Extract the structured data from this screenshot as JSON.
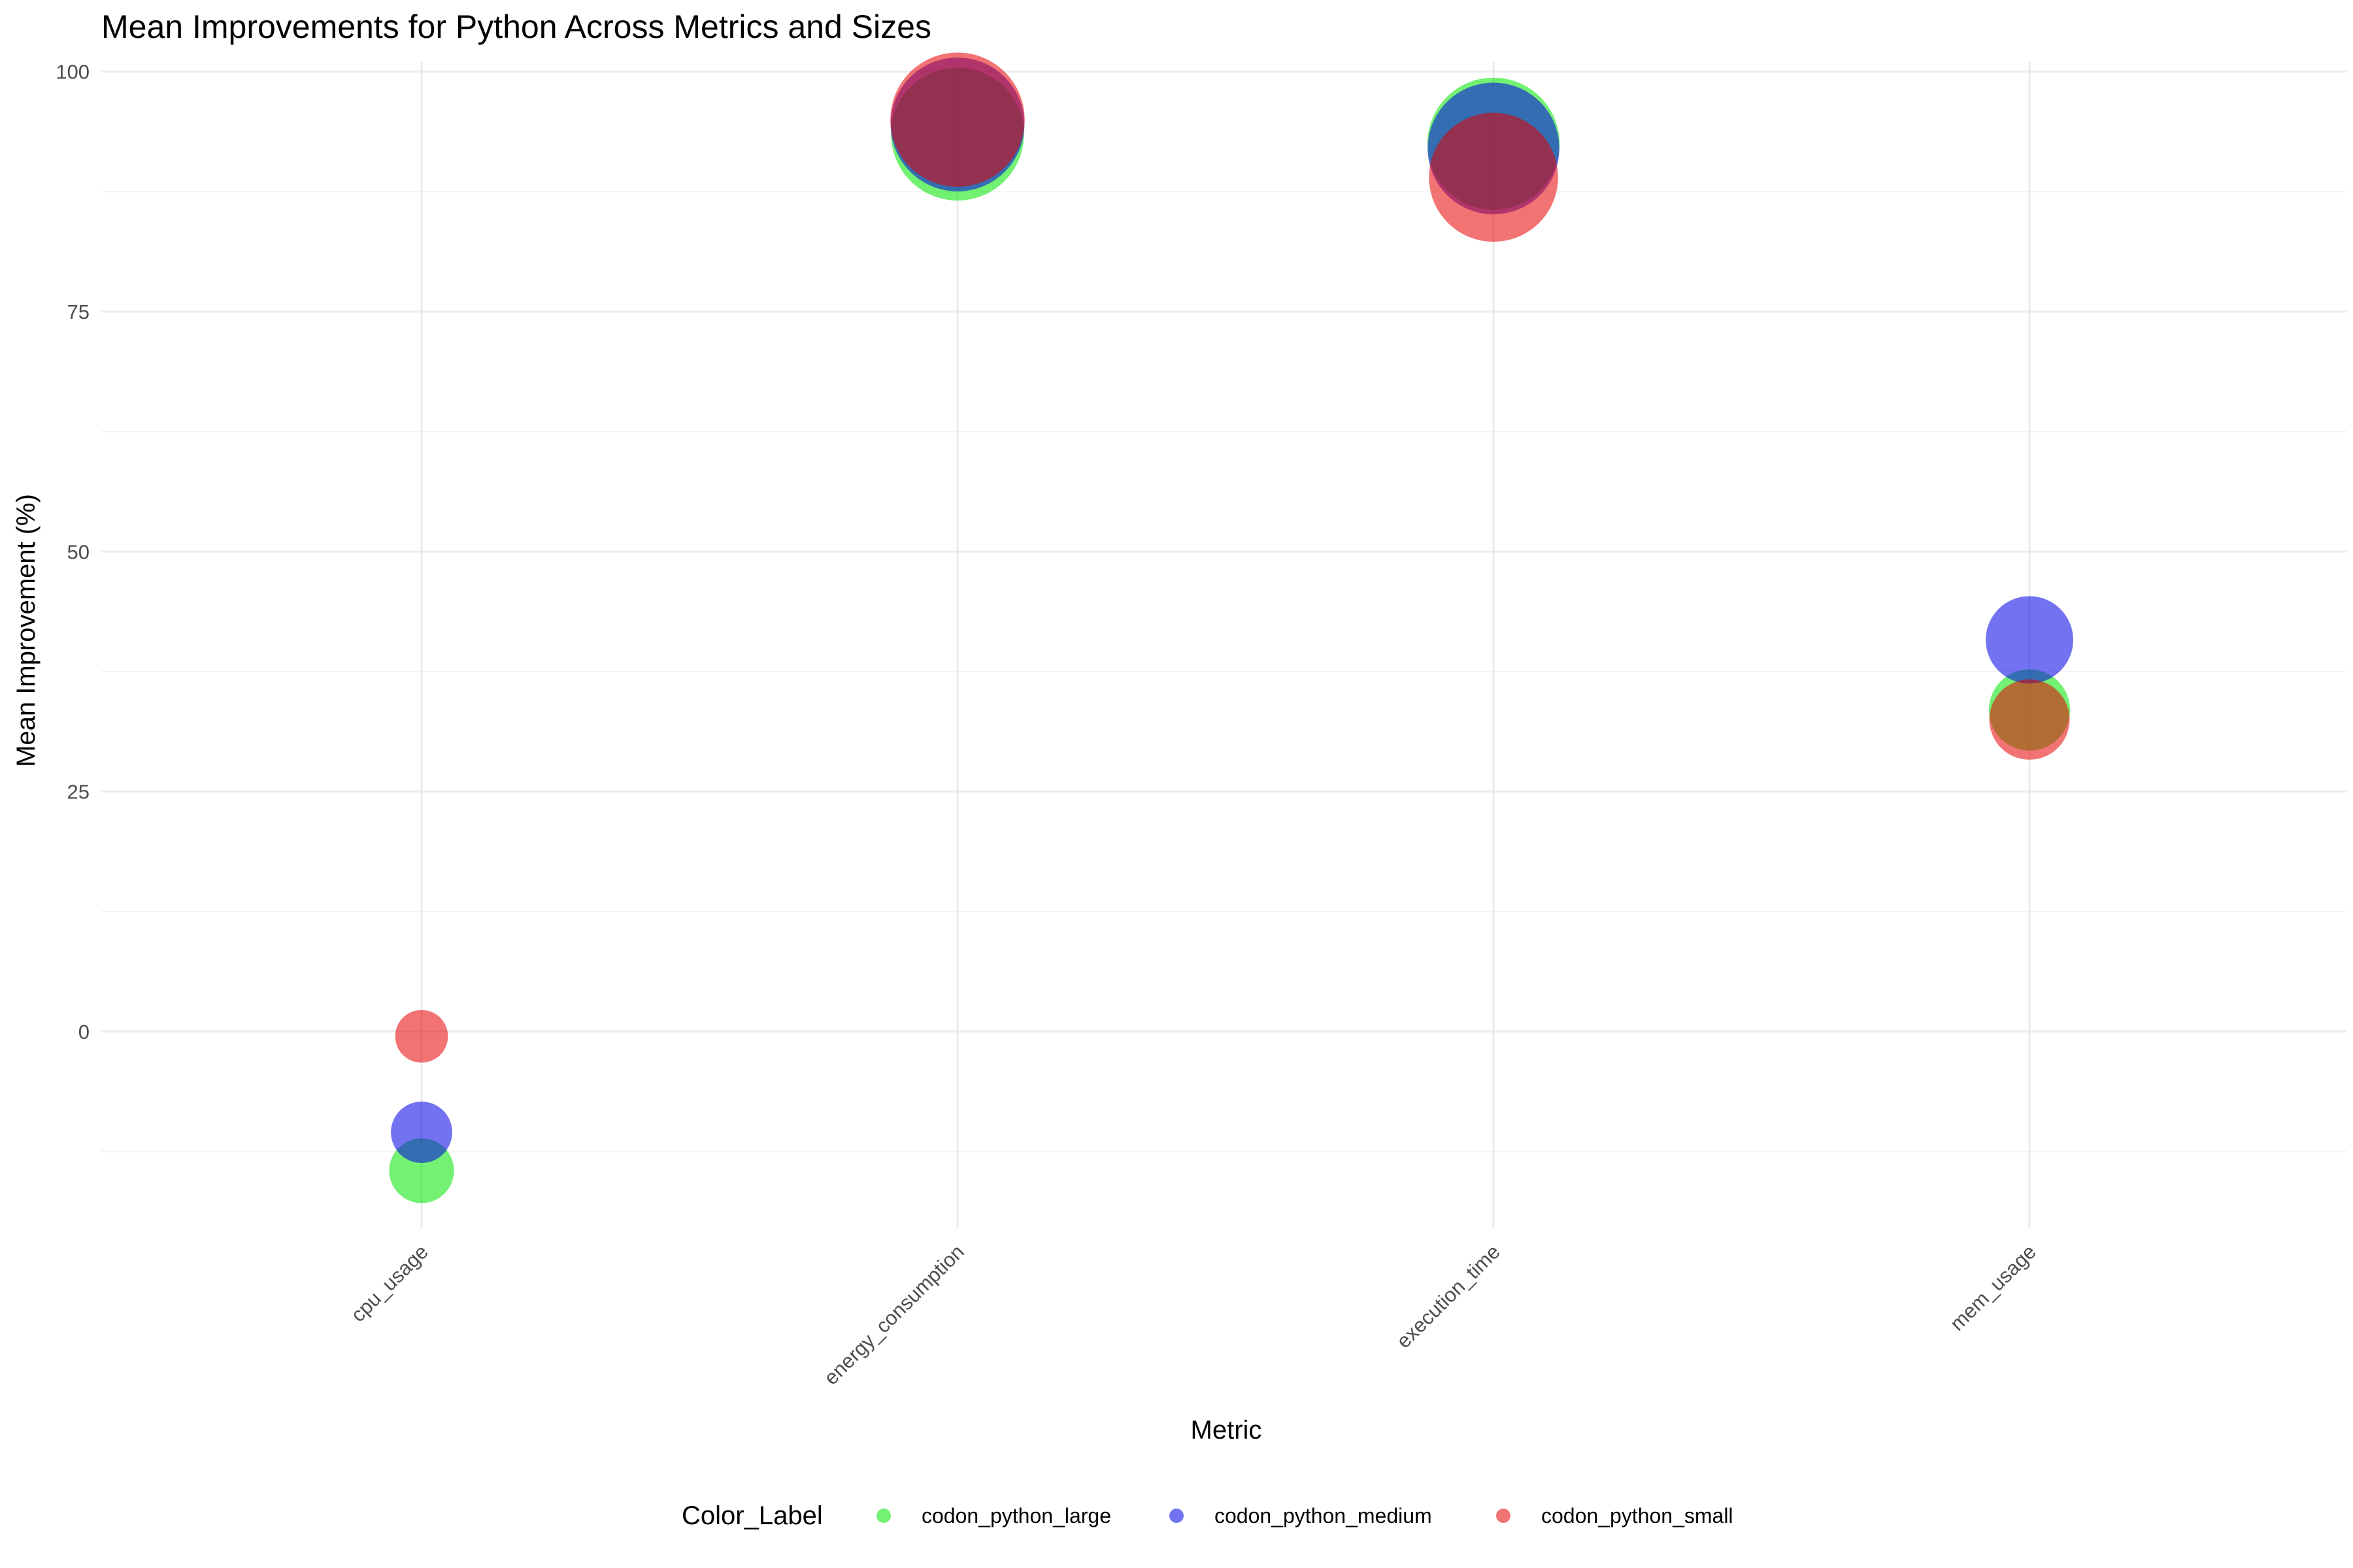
{
  "chart_data": {
    "type": "scatter",
    "title": "Mean Improvements for Python Across Metrics and Sizes",
    "xlabel": "Metric",
    "ylabel": "Mean Improvement (%)",
    "categories": [
      "cpu_usage",
      "energy_consumption",
      "execution_time",
      "mem_usage"
    ],
    "y_ticks": [
      0,
      25,
      50,
      75,
      100
    ],
    "ylim": [
      -20.5,
      101
    ],
    "grid": true,
    "legend": {
      "title": "Color_Label",
      "position": "bottom"
    },
    "series": [
      {
        "name": "codon_python_large",
        "color": "#00e600",
        "values": [
          -14.5,
          93.5,
          92.5,
          33.5
        ],
        "sizes": [
          -14.5,
          93.5,
          92.5,
          33.5
        ]
      },
      {
        "name": "codon_python_medium",
        "color": "#0000e6",
        "values": [
          -10.5,
          94.5,
          92.0,
          40.8
        ],
        "sizes": [
          -10.5,
          94.5,
          92.0,
          40.8
        ]
      },
      {
        "name": "codon_python_small",
        "color": "#e60000",
        "values": [
          -0.5,
          95.0,
          89.0,
          32.5
        ],
        "sizes": [
          -0.5,
          95.0,
          89.0,
          32.5
        ]
      }
    ]
  }
}
